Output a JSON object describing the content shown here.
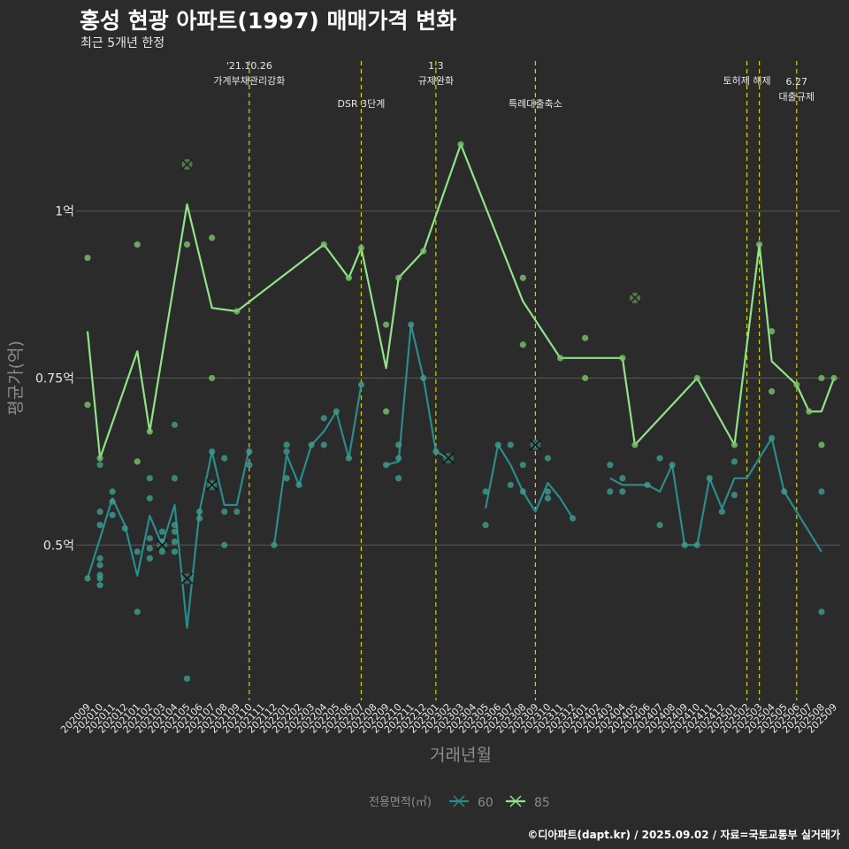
{
  "title": "홍성 현광 아파트(1997) 매매가격 변화",
  "subtitle": "최근 5개년 한정",
  "footer": "©디아파트(dapt.kr) / 2025.09.02 / 자료=국토교통부 실거래가",
  "colors": {
    "background": "#2b2b2b",
    "grid": "#5a5a5a",
    "event_line": "#d4d400",
    "s60": "#2a8c8c",
    "s60_point": "#3f9e8f",
    "s85": "#8fe388",
    "s85_point": "#79c46a",
    "text": "#e6e6e6",
    "muted": "#8c8c8c"
  },
  "chart_data": {
    "type": "line",
    "title": "홍성 현광 아파트(1997) 매매가격 변화",
    "subtitle": "최근 5개년 한정",
    "xlabel": "거래년월",
    "ylabel": "평균가(억)",
    "ylim": [
      0.27,
      1.23
    ],
    "grid": true,
    "legend_position": "bottom",
    "legend_title": "전용면적(㎡)",
    "yticks": [
      {
        "value": 0.5,
        "label": "0.5억"
      },
      {
        "value": 0.75,
        "label": "0.75억"
      },
      {
        "value": 1.0,
        "label": "1억"
      }
    ],
    "x": [
      "202009",
      "202010",
      "202011",
      "202012",
      "202101",
      "202102",
      "202103",
      "202104",
      "202105",
      "202106",
      "202107",
      "202108",
      "202109",
      "202110",
      "202111",
      "202112",
      "202201",
      "202202",
      "202203",
      "202204",
      "202205",
      "202206",
      "202207",
      "202208",
      "202209",
      "202210",
      "202211",
      "202212",
      "202301",
      "202302",
      "202303",
      "202304",
      "202305",
      "202306",
      "202307",
      "202308",
      "202309",
      "202310",
      "202311",
      "202312",
      "202401",
      "202402",
      "202403",
      "202404",
      "202405",
      "202406",
      "202407",
      "202408",
      "202409",
      "202410",
      "202411",
      "202412",
      "202501",
      "202502",
      "202503",
      "202504",
      "202505",
      "202506",
      "202507",
      "202508",
      "202509"
    ],
    "x_tick_labels": [
      "202009",
      "202010",
      "202011",
      "202012",
      "202101",
      "202102",
      "202103",
      "202104",
      "202105",
      "202106",
      "202107",
      "202108",
      "202109",
      "202110",
      "202111",
      "202112",
      "202201",
      "202202",
      "202203",
      "202204",
      "202205",
      "202206",
      "202207",
      "202208",
      "202209",
      "202210",
      "202211",
      "202212",
      "202301",
      "202302",
      "202303",
      "202304",
      "202305",
      "202306",
      "202307",
      "202308",
      "202309",
      "202310",
      "202311",
      "202312",
      "202401",
      "202402",
      "202403",
      "202404",
      "202405",
      "202406",
      "202407",
      "202408",
      "202409",
      "202410",
      "202411",
      "202412",
      "202501",
      "202502",
      "202503",
      "202504",
      "202505",
      "202506",
      "202507",
      "202508",
      "202509"
    ],
    "events": [
      {
        "x": "202110",
        "lines": [
          "'21.10.26",
          "가계부채관리강화"
        ],
        "level": 0
      },
      {
        "x": "202207",
        "lines": [
          "DSR 3단계"
        ],
        "level": 1
      },
      {
        "x": "202301",
        "lines": [
          "1.3",
          "규제완화"
        ],
        "level": 0
      },
      {
        "x": "202309",
        "lines": [
          "특례대출축소"
        ],
        "level": 1
      },
      {
        "x": "202502",
        "lines": [
          "토허제 해제"
        ],
        "level": 0
      },
      {
        "x": "202503",
        "lines": [],
        "level": 0
      },
      {
        "x": "202506",
        "lines": [
          "6.27",
          "대출규제"
        ],
        "level": 2
      }
    ],
    "series": [
      {
        "name": "60",
        "line": [
          {
            "x": "202009",
            "y": 0.45
          },
          {
            "x": "202010",
            "y": 0.51
          },
          {
            "x": "202011",
            "y": 0.57
          },
          {
            "x": "202012",
            "y": 0.53
          },
          {
            "x": "202101",
            "y": 0.454
          },
          {
            "x": "202102",
            "y": 0.544
          },
          {
            "x": "202103",
            "y": 0.5
          },
          {
            "x": "202104",
            "y": 0.56
          },
          {
            "x": "202105",
            "y": 0.376
          },
          {
            "x": "202106",
            "y": 0.55
          },
          {
            "x": "202107",
            "y": 0.64
          },
          {
            "x": "202108",
            "y": 0.56
          },
          {
            "x": "202109",
            "y": 0.56
          },
          {
            "x": "202110",
            "y": 0.645
          },
          null,
          {
            "x": "202112",
            "y": 0.5
          },
          {
            "x": "202201",
            "y": 0.635
          },
          {
            "x": "202202",
            "y": 0.59
          },
          {
            "x": "202203",
            "y": 0.65
          },
          {
            "x": "202204",
            "y": 0.67
          },
          {
            "x": "202205",
            "y": 0.7
          },
          {
            "x": "202206",
            "y": 0.63
          },
          {
            "x": "202207",
            "y": 0.74
          },
          null,
          {
            "x": "202209",
            "y": 0.62
          },
          {
            "x": "202210",
            "y": 0.625
          },
          {
            "x": "202211",
            "y": 0.83
          },
          {
            "x": "202212",
            "y": 0.75
          },
          {
            "x": "202301",
            "y": 0.64
          },
          {
            "x": "202302",
            "y": 0.63
          },
          null,
          null,
          {
            "x": "202305",
            "y": 0.555
          },
          {
            "x": "202306",
            "y": 0.65
          },
          {
            "x": "202307",
            "y": 0.62
          },
          {
            "x": "202308",
            "y": 0.58
          },
          {
            "x": "202309",
            "y": 0.55
          },
          {
            "x": "202310",
            "y": 0.593
          },
          {
            "x": "202311",
            "y": 0.57
          },
          {
            "x": "202312",
            "y": 0.54
          },
          null,
          null,
          null,
          {
            "x": "202403",
            "y": 0.6
          },
          {
            "x": "202404",
            "y": 0.59
          },
          {
            "x": "202405",
            "y": 0.59
          },
          {
            "x": "202406",
            "y": 0.59
          },
          {
            "x": "202407",
            "y": 0.58
          },
          {
            "x": "202408",
            "y": 0.62
          },
          {
            "x": "202409",
            "y": 0.5
          },
          {
            "x": "202410",
            "y": 0.5
          },
          {
            "x": "202411",
            "y": 0.6
          },
          {
            "x": "202412",
            "y": 0.555
          },
          {
            "x": "202501",
            "y": 0.6
          },
          {
            "x": "202502",
            "y": 0.6
          },
          {
            "x": "202503",
            "y": 0.63
          },
          {
            "x": "202504",
            "y": 0.66
          },
          {
            "x": "202505",
            "y": 0.58
          },
          {
            "x": "202508",
            "y": 0.49
          }
        ],
        "points": [
          {
            "x": "202009",
            "y": 0.45
          },
          {
            "x": "202010",
            "y": 0.62
          },
          {
            "x": "202010",
            "y": 0.55
          },
          {
            "x": "202010",
            "y": 0.53
          },
          {
            "x": "202010",
            "y": 0.48
          },
          {
            "x": "202010",
            "y": 0.47
          },
          {
            "x": "202010",
            "y": 0.455
          },
          {
            "x": "202010",
            "y": 0.45
          },
          {
            "x": "202010",
            "y": 0.44
          },
          {
            "x": "202011",
            "y": 0.58
          },
          {
            "x": "202011",
            "y": 0.565
          },
          {
            "x": "202011",
            "y": 0.545
          },
          {
            "x": "202012",
            "y": 0.525
          },
          {
            "x": "202101",
            "y": 0.49
          },
          {
            "x": "202101",
            "y": 0.4
          },
          {
            "x": "202102",
            "y": 0.6
          },
          {
            "x": "202102",
            "y": 0.57
          },
          {
            "x": "202102",
            "y": 0.51
          },
          {
            "x": "202102",
            "y": 0.495
          },
          {
            "x": "202102",
            "y": 0.48
          },
          {
            "x": "202103",
            "y": 0.52
          },
          {
            "x": "202103",
            "y": 0.505
          },
          {
            "x": "202103",
            "y": 0.49
          },
          {
            "x": "202104",
            "y": 0.68
          },
          {
            "x": "202104",
            "y": 0.6
          },
          {
            "x": "202104",
            "y": 0.53
          },
          {
            "x": "202104",
            "y": 0.52
          },
          {
            "x": "202104",
            "y": 0.505
          },
          {
            "x": "202104",
            "y": 0.49
          },
          {
            "x": "202105",
            "y": 0.3
          },
          {
            "x": "202106",
            "y": 0.55
          },
          {
            "x": "202106",
            "y": 0.54
          },
          {
            "x": "202107",
            "y": 0.64
          },
          {
            "x": "202107",
            "y": 0.59
          },
          {
            "x": "202108",
            "y": 0.63
          },
          {
            "x": "202108",
            "y": 0.55
          },
          {
            "x": "202108",
            "y": 0.5
          },
          {
            "x": "202109",
            "y": 0.55
          },
          {
            "x": "202110",
            "y": 0.64
          },
          {
            "x": "202110",
            "y": 0.62
          },
          {
            "x": "202112",
            "y": 0.5
          },
          {
            "x": "202201",
            "y": 0.65
          },
          {
            "x": "202201",
            "y": 0.64
          },
          {
            "x": "202201",
            "y": 0.6
          },
          {
            "x": "202202",
            "y": 0.59
          },
          {
            "x": "202203",
            "y": 0.65
          },
          {
            "x": "202204",
            "y": 0.69
          },
          {
            "x": "202204",
            "y": 0.65
          },
          {
            "x": "202205",
            "y": 0.7
          },
          {
            "x": "202206",
            "y": 0.63
          },
          {
            "x": "202207",
            "y": 0.74
          },
          {
            "x": "202209",
            "y": 0.62
          },
          {
            "x": "202210",
            "y": 0.65
          },
          {
            "x": "202210",
            "y": 0.63
          },
          {
            "x": "202210",
            "y": 0.6
          },
          {
            "x": "202211",
            "y": 0.83
          },
          {
            "x": "202212",
            "y": 0.75
          },
          {
            "x": "202301",
            "y": 0.64
          },
          {
            "x": "202305",
            "y": 0.58
          },
          {
            "x": "202305",
            "y": 0.53
          },
          {
            "x": "202306",
            "y": 0.65
          },
          {
            "x": "202307",
            "y": 0.65
          },
          {
            "x": "202307",
            "y": 0.59
          },
          {
            "x": "202308",
            "y": 0.62
          },
          {
            "x": "202308",
            "y": 0.58
          },
          {
            "x": "202310",
            "y": 0.63
          },
          {
            "x": "202310",
            "y": 0.58
          },
          {
            "x": "202310",
            "y": 0.57
          },
          {
            "x": "202312",
            "y": 0.54
          },
          {
            "x": "202403",
            "y": 0.62
          },
          {
            "x": "202403",
            "y": 0.58
          },
          {
            "x": "202404",
            "y": 0.6
          },
          {
            "x": "202404",
            "y": 0.58
          },
          {
            "x": "202406",
            "y": 0.59
          },
          {
            "x": "202407",
            "y": 0.63
          },
          {
            "x": "202407",
            "y": 0.53
          },
          {
            "x": "202408",
            "y": 0.62
          },
          {
            "x": "202409",
            "y": 0.5
          },
          {
            "x": "202410",
            "y": 0.5
          },
          {
            "x": "202411",
            "y": 0.6
          },
          {
            "x": "202412",
            "y": 0.55
          },
          {
            "x": "202501",
            "y": 0.625
          },
          {
            "x": "202501",
            "y": 0.575
          },
          {
            "x": "202504",
            "y": 0.66
          },
          {
            "x": "202505",
            "y": 0.58
          },
          {
            "x": "202508",
            "y": 0.58
          },
          {
            "x": "202508",
            "y": 0.4
          }
        ],
        "cross_points": [
          {
            "x": "202103",
            "y": 0.5
          },
          {
            "x": "202105",
            "y": 0.45
          },
          {
            "x": "202107",
            "y": 0.59
          },
          {
            "x": "202302",
            "y": 0.63
          },
          {
            "x": "202309",
            "y": 0.65
          }
        ]
      },
      {
        "name": "85",
        "line": [
          {
            "x": "202009",
            "y": 0.82
          },
          {
            "x": "202010",
            "y": 0.63
          },
          {
            "x": "202101",
            "y": 0.79
          },
          {
            "x": "202102",
            "y": 0.67
          },
          {
            "x": "202105",
            "y": 1.01
          },
          {
            "x": "202107",
            "y": 0.855
          },
          {
            "x": "202109",
            "y": 0.85
          },
          {
            "x": "202204",
            "y": 0.95
          },
          {
            "x": "202206",
            "y": 0.9
          },
          {
            "x": "202207",
            "y": 0.945
          },
          {
            "x": "202209",
            "y": 0.765
          },
          {
            "x": "202210",
            "y": 0.9
          },
          {
            "x": "202212",
            "y": 0.94
          },
          {
            "x": "202303",
            "y": 1.1
          },
          {
            "x": "202308",
            "y": 0.865
          },
          {
            "x": "202311",
            "y": 0.78
          },
          {
            "x": "202404",
            "y": 0.78
          },
          {
            "x": "202405",
            "y": 0.65
          },
          {
            "x": "202410",
            "y": 0.75
          },
          {
            "x": "202501",
            "y": 0.65
          },
          {
            "x": "202503",
            "y": 0.95
          },
          {
            "x": "202504",
            "y": 0.775
          },
          {
            "x": "202506",
            "y": 0.74
          },
          {
            "x": "202507",
            "y": 0.7
          },
          {
            "x": "202508",
            "y": 0.7
          },
          {
            "x": "202509",
            "y": 0.75
          }
        ],
        "points": [
          {
            "x": "202009",
            "y": 0.93
          },
          {
            "x": "202009",
            "y": 0.71
          },
          {
            "x": "202010",
            "y": 0.63
          },
          {
            "x": "202101",
            "y": 0.95
          },
          {
            "x": "202101",
            "y": 0.625
          },
          {
            "x": "202102",
            "y": 0.67
          },
          {
            "x": "202105",
            "y": 0.95
          },
          {
            "x": "202107",
            "y": 0.96
          },
          {
            "x": "202107",
            "y": 0.75
          },
          {
            "x": "202109",
            "y": 0.85
          },
          {
            "x": "202204",
            "y": 0.95
          },
          {
            "x": "202206",
            "y": 0.9
          },
          {
            "x": "202207",
            "y": 0.945
          },
          {
            "x": "202209",
            "y": 0.83
          },
          {
            "x": "202209",
            "y": 0.7
          },
          {
            "x": "202210",
            "y": 0.9
          },
          {
            "x": "202212",
            "y": 0.94
          },
          {
            "x": "202303",
            "y": 1.1
          },
          {
            "x": "202308",
            "y": 0.9
          },
          {
            "x": "202308",
            "y": 0.8
          },
          {
            "x": "202311",
            "y": 0.78
          },
          {
            "x": "202401",
            "y": 0.81
          },
          {
            "x": "202401",
            "y": 0.75
          },
          {
            "x": "202404",
            "y": 0.78
          },
          {
            "x": "202405",
            "y": 0.65
          },
          {
            "x": "202410",
            "y": 0.75
          },
          {
            "x": "202501",
            "y": 0.65
          },
          {
            "x": "202503",
            "y": 0.95
          },
          {
            "x": "202504",
            "y": 0.82
          },
          {
            "x": "202504",
            "y": 0.73
          },
          {
            "x": "202506",
            "y": 0.74
          },
          {
            "x": "202507",
            "y": 0.7
          },
          {
            "x": "202508",
            "y": 0.75
          },
          {
            "x": "202508",
            "y": 0.65
          },
          {
            "x": "202509",
            "y": 0.75
          }
        ],
        "cross_points": [
          {
            "x": "202105",
            "y": 1.07
          },
          {
            "x": "202405",
            "y": 0.87
          }
        ]
      }
    ]
  }
}
